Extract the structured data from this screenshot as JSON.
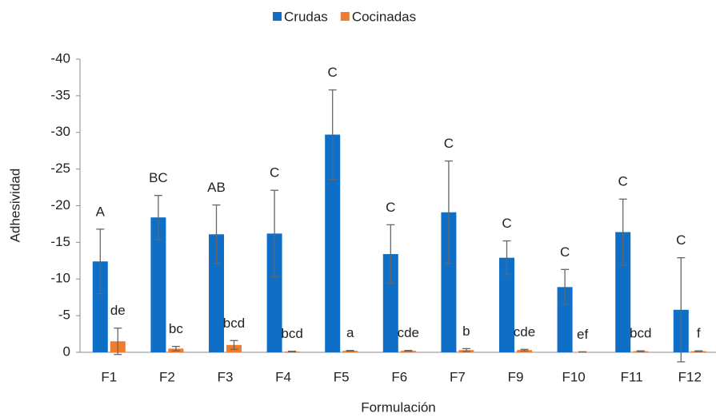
{
  "chart_data": {
    "type": "bar",
    "x_label": "Formulación",
    "y_label": "Adhesividad",
    "categories": [
      "F1",
      "F2",
      "F3",
      "F4",
      "F5",
      "F6",
      "F7",
      "F9",
      "F10",
      "F11",
      "F12"
    ],
    "series": [
      {
        "name": "Crudas",
        "color": "#0f6fc6",
        "values": [
          -12.4,
          -18.4,
          -16.1,
          -16.2,
          -29.7,
          -13.4,
          -19.1,
          -12.9,
          -8.9,
          -16.4,
          -5.8
        ],
        "errors": [
          4.4,
          3.0,
          4.0,
          5.9,
          6.1,
          4.0,
          7.0,
          2.3,
          2.4,
          4.5,
          7.1
        ],
        "labels": [
          "A",
          "BC",
          "AB",
          "C",
          "C",
          "C",
          "C",
          "C",
          "C",
          "C",
          "C"
        ]
      },
      {
        "name": "Cocinadas",
        "color": "#ed7d31",
        "values": [
          -1.5,
          -0.5,
          -1.0,
          -0.1,
          -0.2,
          -0.2,
          -0.3,
          -0.3,
          -0.05,
          -0.15,
          -0.15
        ],
        "errors": [
          1.8,
          0.3,
          0.6,
          0.05,
          0.05,
          0.05,
          0.2,
          0.1,
          0.02,
          0.05,
          0.05
        ],
        "labels": [
          "de",
          "bc",
          "bcd",
          "bcd",
          "a",
          "cde",
          "b",
          "cde",
          "ef",
          "bcd",
          "f"
        ]
      }
    ],
    "ylim": [
      0,
      -40
    ],
    "yticks": [
      0,
      -5,
      -10,
      -15,
      -20,
      -25,
      -30,
      -35,
      -40
    ],
    "legend": "top"
  }
}
